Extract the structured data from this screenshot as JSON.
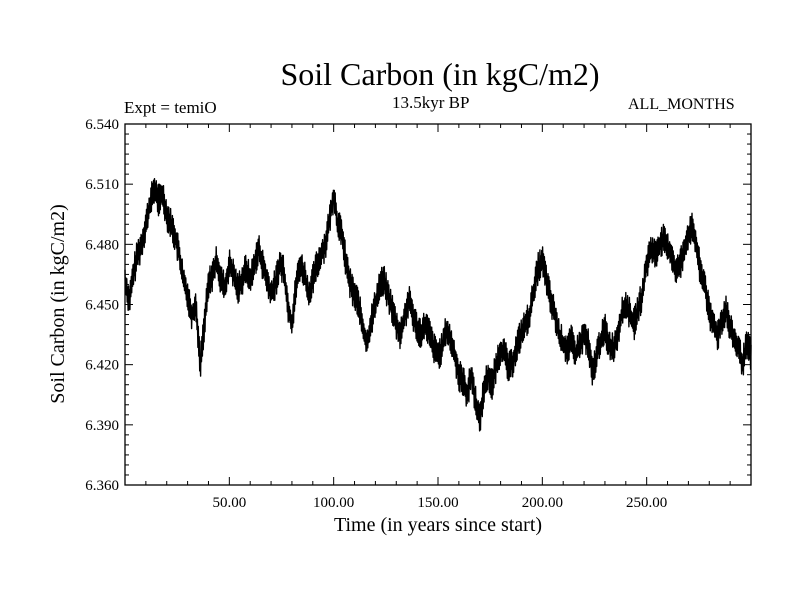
{
  "header": {
    "title": "Soil Carbon (in kgC/m2)",
    "experiment": "Expt = temiO",
    "subtitle": "13.5kyr BP",
    "months": "ALL_MONTHS"
  },
  "chart_data": {
    "type": "line",
    "title": "Soil Carbon (in kgC/m2)",
    "xlabel": "Time (in years since start)",
    "ylabel": "Soil Carbon (in kgC/m2)",
    "xlim": [
      0,
      300
    ],
    "ylim": [
      6.36,
      6.54
    ],
    "xticks": [
      {
        "value": 50,
        "label": "50.00"
      },
      {
        "value": 100,
        "label": "100.00"
      },
      {
        "value": 150,
        "label": "150.00"
      },
      {
        "value": 200,
        "label": "200.00"
      },
      {
        "value": 250,
        "label": "250.00"
      }
    ],
    "yticks": [
      {
        "value": 6.36,
        "label": "6.360"
      },
      {
        "value": 6.39,
        "label": "6.390"
      },
      {
        "value": 6.42,
        "label": "6.420"
      },
      {
        "value": 6.45,
        "label": "6.450"
      },
      {
        "value": 6.48,
        "label": "6.480"
      },
      {
        "value": 6.51,
        "label": "6.510"
      },
      {
        "value": 6.54,
        "label": "6.540"
      }
    ],
    "series": [
      {
        "name": "Soil Carbon",
        "color": "#000000",
        "x": [
          0,
          2,
          4,
          6,
          8,
          10,
          12,
          14,
          16,
          18,
          20,
          22,
          24,
          26,
          28,
          30,
          32,
          34,
          36,
          38,
          40,
          42,
          44,
          46,
          48,
          50,
          52,
          54,
          56,
          58,
          60,
          62,
          64,
          66,
          68,
          70,
          72,
          74,
          76,
          78,
          80,
          82,
          84,
          86,
          88,
          90,
          92,
          94,
          96,
          98,
          100,
          102,
          104,
          106,
          108,
          110,
          112,
          114,
          116,
          118,
          120,
          122,
          124,
          126,
          128,
          130,
          132,
          134,
          136,
          138,
          140,
          142,
          144,
          146,
          148,
          150,
          152,
          154,
          156,
          158,
          160,
          162,
          164,
          166,
          168,
          170,
          172,
          174,
          176,
          178,
          180,
          182,
          184,
          186,
          188,
          190,
          192,
          194,
          196,
          198,
          200,
          202,
          204,
          206,
          208,
          210,
          212,
          214,
          216,
          218,
          220,
          222,
          224,
          226,
          228,
          230,
          232,
          234,
          236,
          238,
          240,
          242,
          244,
          246,
          248,
          250,
          252,
          254,
          256,
          258,
          260,
          262,
          264,
          266,
          268,
          270,
          272,
          274,
          276,
          278,
          280,
          282,
          284,
          286,
          288,
          290,
          292,
          294,
          296,
          298,
          300
        ],
        "y": [
          6.462,
          6.452,
          6.465,
          6.475,
          6.48,
          6.49,
          6.5,
          6.508,
          6.502,
          6.505,
          6.495,
          6.49,
          6.484,
          6.475,
          6.462,
          6.455,
          6.445,
          6.45,
          6.42,
          6.44,
          6.46,
          6.465,
          6.472,
          6.462,
          6.458,
          6.47,
          6.465,
          6.458,
          6.462,
          6.468,
          6.462,
          6.47,
          6.478,
          6.47,
          6.462,
          6.455,
          6.46,
          6.47,
          6.468,
          6.45,
          6.44,
          6.46,
          6.47,
          6.465,
          6.455,
          6.462,
          6.47,
          6.475,
          6.48,
          6.492,
          6.505,
          6.49,
          6.485,
          6.47,
          6.46,
          6.455,
          6.45,
          6.438,
          6.43,
          6.442,
          6.45,
          6.46,
          6.462,
          6.455,
          6.448,
          6.44,
          6.435,
          6.444,
          6.452,
          6.445,
          6.438,
          6.436,
          6.44,
          6.435,
          6.428,
          6.425,
          6.428,
          6.438,
          6.432,
          6.425,
          6.415,
          6.412,
          6.405,
          6.415,
          6.402,
          6.392,
          6.408,
          6.415,
          6.41,
          6.42,
          6.428,
          6.425,
          6.418,
          6.422,
          6.43,
          6.436,
          6.44,
          6.445,
          6.458,
          6.468,
          6.472,
          6.462,
          6.452,
          6.445,
          6.435,
          6.43,
          6.428,
          6.432,
          6.425,
          6.43,
          6.435,
          6.43,
          6.415,
          6.425,
          6.432,
          6.438,
          6.43,
          6.428,
          6.435,
          6.445,
          6.45,
          6.445,
          6.44,
          6.448,
          6.455,
          6.47,
          6.478,
          6.475,
          6.48,
          6.482,
          6.478,
          6.475,
          6.466,
          6.47,
          6.478,
          6.485,
          6.488,
          6.478,
          6.465,
          6.46,
          6.445,
          6.44,
          6.435,
          6.442,
          6.448,
          6.438,
          6.432,
          6.428,
          6.42,
          6.43,
          6.425
        ],
        "spread": 0.008
      }
    ]
  }
}
